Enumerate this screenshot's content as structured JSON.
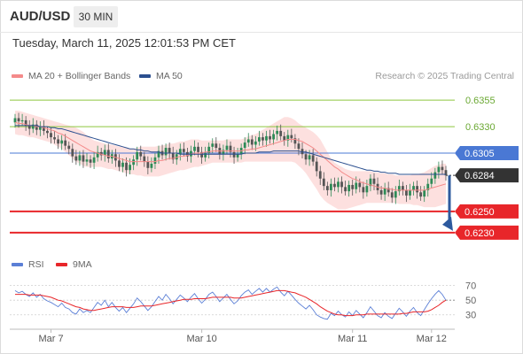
{
  "header": {
    "symbol": "AUD/USD",
    "timeframe": "30 MIN"
  },
  "timestamp": "Tuesday, March 11, 2025 12:01:53 PM CET",
  "legend": {
    "items": [
      {
        "label": "MA 20 + Bollinger Bands",
        "color": "#f48a8a"
      },
      {
        "label": "MA 50",
        "color": "#2b4f8f"
      }
    ],
    "credit": "Research © 2025 Trading Central"
  },
  "rsi_legend": {
    "items": [
      {
        "label": "RSI",
        "color": "#5b7fd6"
      },
      {
        "label": "9MA",
        "color": "#e8262a"
      }
    ]
  },
  "colors": {
    "resistance": "#8dc63f",
    "support": "#e8262a",
    "pivot": "#4a78d4",
    "current": "#333333",
    "band_fill": "#fde0df",
    "ma20": "#f48a8a",
    "ma50": "#2b4f8f",
    "bull": "#2e8b57",
    "bear": "#555555",
    "arrow": "#2d5a9e",
    "rsi": "#5b7fd6",
    "rsi_ma": "#e8262a"
  },
  "chart_data": [
    {
      "type": "candlestick",
      "instrument": "AUD/USD",
      "interval": "30 MIN",
      "ylim": [
        0.6214,
        0.6371
      ],
      "x_ticks": [
        {
          "label": "Mar 7",
          "index": 10
        },
        {
          "label": "Mar 10",
          "index": 52
        },
        {
          "label": "Mar 11",
          "index": 94
        },
        {
          "label": "Mar 12",
          "index": 116
        }
      ],
      "candle_count": 121,
      "levels": [
        {
          "label": "0.6355",
          "value": 0.6355,
          "kind": "resistance"
        },
        {
          "label": "0.6330",
          "value": 0.633,
          "kind": "resistance"
        },
        {
          "label": "0.6305",
          "value": 0.6305,
          "kind": "pivot"
        },
        {
          "label": "0.6284",
          "value": 0.6284,
          "kind": "current"
        },
        {
          "label": "0.6250",
          "value": 0.625,
          "kind": "support"
        },
        {
          "label": "0.6230",
          "value": 0.623,
          "kind": "support"
        }
      ],
      "close": [
        0.6338,
        0.6335,
        0.6336,
        0.6331,
        0.6328,
        0.6332,
        0.6327,
        0.633,
        0.6326,
        0.6324,
        0.632,
        0.6318,
        0.6314,
        0.6317,
        0.6312,
        0.6309,
        0.6302,
        0.6298,
        0.6303,
        0.6297,
        0.6299,
        0.6296,
        0.6301,
        0.6306,
        0.6303,
        0.6308,
        0.63,
        0.6304,
        0.6298,
        0.6292,
        0.6296,
        0.6289,
        0.6294,
        0.6299,
        0.6306,
        0.6302,
        0.6297,
        0.6291,
        0.6295,
        0.6301,
        0.6307,
        0.6303,
        0.631,
        0.6305,
        0.6299,
        0.6304,
        0.6309,
        0.6306,
        0.6302,
        0.6307,
        0.6311,
        0.6306,
        0.6301,
        0.6305,
        0.6311,
        0.6314,
        0.631,
        0.6304,
        0.6308,
        0.6312,
        0.6306,
        0.6301,
        0.6304,
        0.631,
        0.6315,
        0.6318,
        0.6313,
        0.6316,
        0.632,
        0.6317,
        0.6321,
        0.6318,
        0.6323,
        0.6326,
        0.6321,
        0.6317,
        0.6322,
        0.6319,
        0.6314,
        0.6309,
        0.6304,
        0.6299,
        0.6303,
        0.6297,
        0.6288,
        0.6281,
        0.6274,
        0.627,
        0.6276,
        0.6273,
        0.6278,
        0.6273,
        0.6269,
        0.6275,
        0.6271,
        0.6277,
        0.6273,
        0.6268,
        0.6274,
        0.6281,
        0.6276,
        0.627,
        0.6266,
        0.6272,
        0.6268,
        0.6263,
        0.6269,
        0.6274,
        0.627,
        0.6265,
        0.627,
        0.6274,
        0.6268,
        0.6264,
        0.627,
        0.6276,
        0.6281,
        0.6287,
        0.6292,
        0.6289,
        0.6284
      ],
      "ma20": [
        0.6334,
        0.6333,
        0.6333,
        0.6332,
        0.6331,
        0.6331,
        0.633,
        0.633,
        0.6329,
        0.6328,
        0.6327,
        0.6326,
        0.6324,
        0.6323,
        0.6321,
        0.6319,
        0.6317,
        0.6315,
        0.6313,
        0.6311,
        0.6309,
        0.6307,
        0.6306,
        0.6305,
        0.6304,
        0.6303,
        0.6302,
        0.6302,
        0.6301,
        0.63,
        0.6299,
        0.6298,
        0.6297,
        0.6297,
        0.6297,
        0.6297,
        0.6297,
        0.6297,
        0.6297,
        0.6297,
        0.6298,
        0.6298,
        0.6299,
        0.63,
        0.63,
        0.6301,
        0.6302,
        0.6302,
        0.6303,
        0.6304,
        0.6305,
        0.6305,
        0.6305,
        0.6306,
        0.6306,
        0.6307,
        0.6307,
        0.6307,
        0.6307,
        0.6307,
        0.6307,
        0.6307,
        0.6307,
        0.6307,
        0.6308,
        0.6308,
        0.6309,
        0.6309,
        0.631,
        0.6311,
        0.6312,
        0.6313,
        0.6314,
        0.6315,
        0.6316,
        0.6317,
        0.6318,
        0.6318,
        0.6318,
        0.6317,
        0.6316,
        0.6314,
        0.6312,
        0.631,
        0.6307,
        0.6304,
        0.6301,
        0.6298,
        0.6295,
        0.6292,
        0.629,
        0.6287,
        0.6285,
        0.6283,
        0.6281,
        0.628,
        0.6278,
        0.6277,
        0.6276,
        0.6275,
        0.6274,
        0.6273,
        0.6272,
        0.6272,
        0.6271,
        0.6271,
        0.627,
        0.627,
        0.627,
        0.627,
        0.627,
        0.627,
        0.627,
        0.627,
        0.627,
        0.6271,
        0.6272,
        0.6273,
        0.6274,
        0.6275,
        0.6276
      ],
      "ma50": [
        0.6331,
        0.6331,
        0.6331,
        0.6331,
        0.6331,
        0.6331,
        0.6331,
        0.633,
        0.633,
        0.633,
        0.6329,
        0.6329,
        0.6328,
        0.6328,
        0.6327,
        0.6326,
        0.6325,
        0.6324,
        0.6323,
        0.6322,
        0.6321,
        0.632,
        0.6319,
        0.6318,
        0.6317,
        0.6316,
        0.6315,
        0.6314,
        0.6313,
        0.6312,
        0.6311,
        0.631,
        0.6309,
        0.6309,
        0.6308,
        0.6308,
        0.6307,
        0.6307,
        0.6306,
        0.6306,
        0.6306,
        0.6305,
        0.6305,
        0.6305,
        0.6305,
        0.6305,
        0.6304,
        0.6304,
        0.6304,
        0.6304,
        0.6304,
        0.6304,
        0.6304,
        0.6304,
        0.6304,
        0.6304,
        0.6304,
        0.6304,
        0.6304,
        0.6304,
        0.6304,
        0.6304,
        0.6304,
        0.6304,
        0.6305,
        0.6305,
        0.6305,
        0.6305,
        0.6306,
        0.6306,
        0.6306,
        0.6306,
        0.6307,
        0.6307,
        0.6307,
        0.6307,
        0.6307,
        0.6307,
        0.6307,
        0.6307,
        0.6306,
        0.6306,
        0.6305,
        0.6304,
        0.6303,
        0.6302,
        0.6301,
        0.63,
        0.6299,
        0.6298,
        0.6297,
        0.6296,
        0.6295,
        0.6294,
        0.6293,
        0.6292,
        0.6291,
        0.629,
        0.6289,
        0.6289,
        0.6288,
        0.6288,
        0.6287,
        0.6287,
        0.6286,
        0.6286,
        0.6286,
        0.6285,
        0.6285,
        0.6285,
        0.6285,
        0.6285,
        0.6285,
        0.6285,
        0.6285,
        0.6285,
        0.6285,
        0.6285,
        0.6285,
        0.6285,
        0.6285
      ],
      "bb_upper": [
        0.6345,
        0.6345,
        0.6344,
        0.6343,
        0.6342,
        0.6341,
        0.634,
        0.6339,
        0.6338,
        0.6337,
        0.6336,
        0.6335,
        0.6334,
        0.6333,
        0.6332,
        0.6331,
        0.633,
        0.6329,
        0.6327,
        0.6325,
        0.6322,
        0.6319,
        0.6317,
        0.6316,
        0.6315,
        0.6314,
        0.6313,
        0.6313,
        0.6312,
        0.6311,
        0.6311,
        0.631,
        0.6309,
        0.6309,
        0.631,
        0.6311,
        0.6311,
        0.6311,
        0.6311,
        0.6311,
        0.6312,
        0.6312,
        0.6313,
        0.6314,
        0.6314,
        0.6315,
        0.6316,
        0.6316,
        0.6317,
        0.6318,
        0.6318,
        0.6318,
        0.6317,
        0.6317,
        0.6317,
        0.6317,
        0.6317,
        0.6317,
        0.6317,
        0.6318,
        0.6318,
        0.6318,
        0.6318,
        0.6318,
        0.6319,
        0.6321,
        0.6322,
        0.6323,
        0.6325,
        0.6327,
        0.6329,
        0.6331,
        0.6333,
        0.6335,
        0.6337,
        0.6339,
        0.6339,
        0.6338,
        0.6336,
        0.6333,
        0.6331,
        0.6329,
        0.6327,
        0.6325,
        0.6322,
        0.6318,
        0.6312,
        0.6306,
        0.63,
        0.6296,
        0.6294,
        0.6292,
        0.629,
        0.6289,
        0.6288,
        0.6288,
        0.6288,
        0.6288,
        0.6288,
        0.6288,
        0.6287,
        0.6287,
        0.6286,
        0.6286,
        0.6285,
        0.6285,
        0.6284,
        0.6284,
        0.6284,
        0.6284,
        0.6284,
        0.6285,
        0.6285,
        0.6286,
        0.6287,
        0.6289,
        0.6291,
        0.6293,
        0.6294,
        0.6295,
        0.6295
      ],
      "bb_lower": [
        0.6323,
        0.6322,
        0.6322,
        0.6321,
        0.632,
        0.632,
        0.6319,
        0.6318,
        0.6317,
        0.6316,
        0.6315,
        0.6313,
        0.6311,
        0.6309,
        0.6306,
        0.6303,
        0.63,
        0.6297,
        0.6295,
        0.6293,
        0.6292,
        0.6292,
        0.6292,
        0.6292,
        0.6292,
        0.6291,
        0.629,
        0.629,
        0.6289,
        0.6288,
        0.6287,
        0.6286,
        0.6285,
        0.6285,
        0.6284,
        0.6284,
        0.6283,
        0.6283,
        0.6283,
        0.6283,
        0.6283,
        0.6284,
        0.6285,
        0.6286,
        0.6287,
        0.6288,
        0.6289,
        0.6289,
        0.629,
        0.6291,
        0.6292,
        0.6292,
        0.6293,
        0.6294,
        0.6295,
        0.6296,
        0.6296,
        0.6296,
        0.6296,
        0.6296,
        0.6296,
        0.6296,
        0.6296,
        0.6296,
        0.6297,
        0.6297,
        0.6297,
        0.6297,
        0.6297,
        0.6297,
        0.6297,
        0.6297,
        0.6297,
        0.6297,
        0.6297,
        0.6297,
        0.6297,
        0.6297,
        0.6296,
        0.6293,
        0.629,
        0.6286,
        0.6281,
        0.6276,
        0.6271,
        0.6265,
        0.6261,
        0.6258,
        0.6256,
        0.6254,
        0.6252,
        0.6252,
        0.6252,
        0.6253,
        0.6254,
        0.6255,
        0.6256,
        0.6257,
        0.6258,
        0.6258,
        0.6258,
        0.6258,
        0.6258,
        0.6258,
        0.6258,
        0.6258,
        0.6258,
        0.6257,
        0.6257,
        0.6257,
        0.6257,
        0.6256,
        0.6256,
        0.6255,
        0.6254,
        0.6254,
        0.6254,
        0.6254,
        0.6255,
        0.6256,
        0.6257
      ],
      "forecast": {
        "from": 0.6284,
        "to": 0.623
      }
    },
    {
      "type": "line",
      "name": "RSI",
      "ylim": [
        20,
        78
      ],
      "y_ticks": [
        70,
        50,
        30
      ],
      "series": [
        {
          "name": "RSI",
          "values": [
            63,
            60,
            62,
            58,
            55,
            60,
            54,
            58,
            52,
            49,
            47,
            44,
            41,
            46,
            40,
            38,
            33,
            31,
            38,
            33,
            36,
            33,
            40,
            47,
            43,
            50,
            41,
            47,
            40,
            35,
            40,
            33,
            39,
            45,
            53,
            48,
            42,
            36,
            41,
            48,
            55,
            50,
            58,
            52,
            45,
            51,
            57,
            53,
            48,
            54,
            59,
            52,
            46,
            51,
            58,
            61,
            55,
            48,
            53,
            58,
            51,
            45,
            49,
            56,
            61,
            64,
            58,
            62,
            66,
            61,
            66,
            61,
            65,
            68,
            61,
            56,
            62,
            57,
            51,
            46,
            42,
            38,
            43,
            37,
            30,
            27,
            25,
            24,
            32,
            29,
            35,
            30,
            27,
            34,
            29,
            36,
            31,
            26,
            33,
            41,
            35,
            29,
            26,
            33,
            28,
            25,
            32,
            39,
            34,
            28,
            35,
            40,
            33,
            29,
            37,
            45,
            52,
            58,
            63,
            58,
            50
          ]
        },
        {
          "name": "9MA",
          "values": [
            58,
            58,
            58,
            58,
            57,
            57,
            57,
            57,
            56,
            55,
            54,
            52,
            50,
            49,
            47,
            45,
            43,
            41,
            40,
            38,
            37,
            36,
            36,
            37,
            38,
            39,
            40,
            41,
            41,
            41,
            41,
            40,
            40,
            40,
            41,
            42,
            42,
            42,
            42,
            43,
            44,
            45,
            46,
            47,
            48,
            49,
            50,
            51,
            51,
            51,
            52,
            52,
            52,
            52,
            53,
            54,
            54,
            54,
            54,
            54,
            54,
            53,
            53,
            53,
            54,
            55,
            56,
            57,
            58,
            59,
            60,
            61,
            62,
            63,
            63,
            63,
            62,
            61,
            60,
            58,
            56,
            54,
            51,
            48,
            45,
            41,
            38,
            35,
            33,
            31,
            30,
            30,
            29,
            29,
            29,
            30,
            30,
            30,
            31,
            31,
            31,
            31,
            31,
            31,
            31,
            31,
            31,
            31,
            32,
            32,
            33,
            34,
            34,
            34,
            34,
            35,
            37,
            40,
            43,
            47,
            50
          ]
        }
      ]
    }
  ]
}
